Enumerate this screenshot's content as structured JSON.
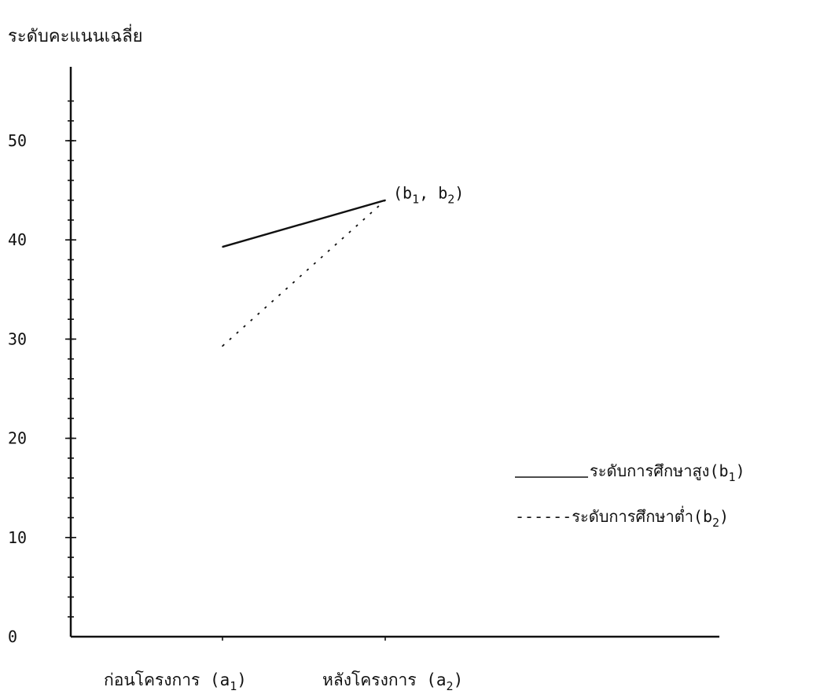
{
  "chart_data": {
    "type": "line",
    "ylabel": "ระดับคะแนนเฉลี่ย",
    "xlabel": "",
    "categories": [
      "a1",
      "a2"
    ],
    "category_labels": [
      {
        "prefix": "ก่อนโครงการ (a",
        "sub": "1",
        "suffix": ")"
      },
      {
        "prefix": "หลังโครงการ (a",
        "sub": "2",
        "suffix": ")"
      }
    ],
    "ylim": [
      0,
      55
    ],
    "yticks": [
      0,
      10,
      20,
      30,
      40,
      50
    ],
    "ytick_labels": [
      "0",
      "10",
      "20",
      "30",
      "40",
      "50"
    ],
    "minor_tick_step": 2,
    "series": [
      {
        "name": "ระดับการศึกษาสูง(b1)",
        "legend_prefix": "ระดับการศึกษาสูง(b",
        "legend_sub": "1",
        "legend_suffix": ")",
        "legend_line": "______",
        "style": "solid",
        "color": "#111111",
        "values": [
          39.3,
          44.0
        ]
      },
      {
        "name": "ระดับการศึกษาต่ำ(b2)",
        "legend_prefix": "------ระดับการศึกษาต่ำ(b",
        "legend_sub": "2",
        "legend_suffix": ")",
        "style": "dashed",
        "color": "#111111",
        "values": [
          29.3,
          44.0
        ]
      }
    ],
    "annotation": {
      "prefix1": "(b",
      "sub1": "1",
      "mid": ", b",
      "sub2": "2",
      "suffix": ")",
      "x_category": "a2",
      "y": 44.0
    },
    "legend_position": "right",
    "grid": false
  }
}
